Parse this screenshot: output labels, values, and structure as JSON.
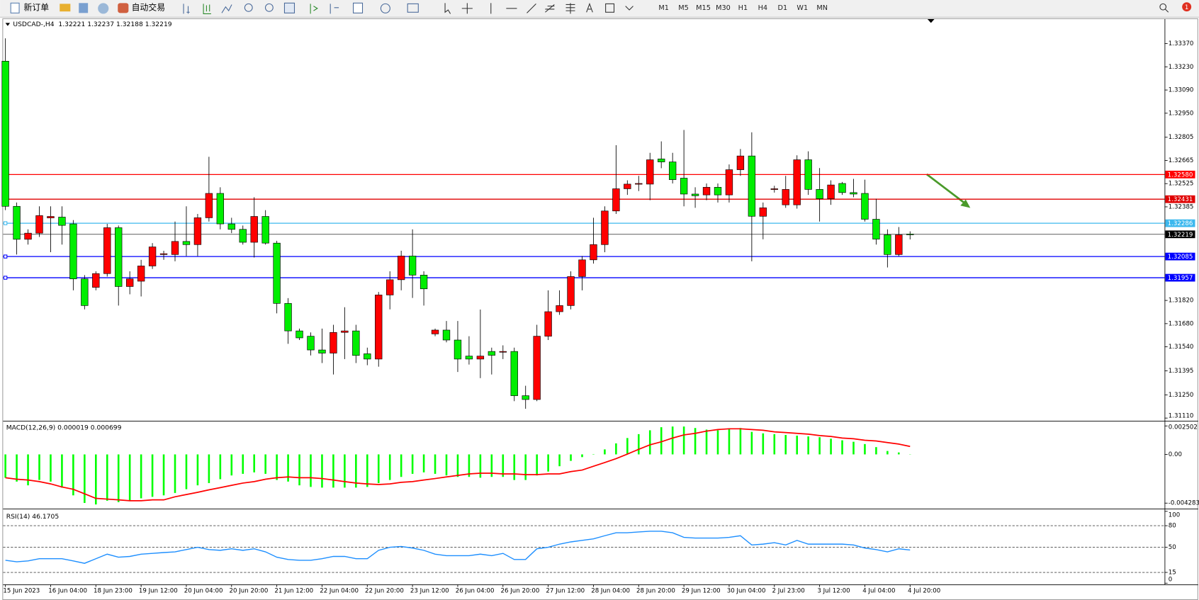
{
  "toolbar": {
    "new_order": "新订单",
    "auto_trading": "自动交易",
    "timeframes": [
      "M1",
      "M5",
      "M15",
      "M30",
      "H1",
      "H4",
      "D1",
      "W1",
      "MN"
    ],
    "notifications": "1"
  },
  "chart_data": [
    {
      "type": "candlestick",
      "title": "USDCAD-,H4  1.32221 1.32237 1.32188 1.32219",
      "up_color": "#ff0000",
      "down_color": "#00ee00",
      "categories": [
        "15 Jun 2023",
        null,
        null,
        null,
        "16 Jun 04:00",
        null,
        null,
        null,
        "18 Jun 23:00",
        null,
        null,
        null,
        "19 Jun 12:00",
        null,
        null,
        null,
        "20 Jun 04:00",
        null,
        null,
        null,
        "20 Jun 20:00",
        null,
        null,
        null,
        "21 Jun 12:00",
        null,
        null,
        null,
        "22 Jun 04:00",
        null,
        null,
        null,
        "22 Jun 20:00",
        null,
        null,
        null,
        "23 Jun 12:00",
        null,
        null,
        null,
        "26 Jun 04:00",
        null,
        null,
        null,
        "26 Jun 20:00",
        null,
        null,
        null,
        "27 Jun 12:00",
        null,
        null,
        null,
        "28 Jun 04:00",
        null,
        null,
        null,
        "28 Jun 20:00",
        null,
        null,
        null,
        "29 Jun 12:00",
        null,
        null,
        null,
        "30 Jun 04:00",
        null,
        null,
        null,
        "2 Jul 23:00",
        null,
        null,
        null,
        "3 Jul 12:00",
        null,
        null,
        null,
        "4 Jul 04:00",
        null,
        null,
        null,
        "4 Jul 20:00"
      ],
      "open": [
        1.33264,
        1.32388,
        1.32189,
        1.32226,
        1.32318,
        1.32323,
        1.32282,
        1.3195,
        1.31899,
        1.31982,
        1.32259,
        1.31904,
        1.31936,
        1.32028,
        1.32097,
        1.32097,
        1.32176,
        1.32157,
        1.32319,
        1.32466,
        1.32282,
        1.32249,
        1.32171,
        1.32327,
        1.32166,
        1.31802,
        1.31636,
        1.31604,
        1.31521,
        1.31502,
        1.31627,
        1.31636,
        1.31498,
        1.31466,
        1.31853,
        1.31945,
        1.32088,
        1.31973,
        1.31618,
        1.31641,
        1.31581,
        1.31484,
        1.31466,
        1.31512,
        1.31512,
        1.31512,
        1.31245,
        1.31222,
        1.31604,
        1.31752,
        1.31789,
        1.31964,
        1.32065,
        1.32157,
        1.3236,
        1.32494,
        1.32526,
        1.32522,
        1.32674,
        1.32656,
        1.32558,
        1.32462,
        1.32457,
        1.32503,
        1.32457,
        1.32609,
        1.32692,
        1.32328,
        1.32494,
        1.32397,
        1.32397,
        1.32669,
        1.3249,
        1.32434,
        1.32526,
        1.32471,
        1.32466,
        1.3231,
        1.32216,
        1.32097,
        1.32221
      ],
      "high": [
        1.33402,
        1.32411,
        1.32249,
        1.32388,
        1.32388,
        1.32388,
        1.32305,
        1.31973,
        1.31996,
        1.32282,
        1.32272,
        1.31996,
        1.32065,
        1.32166,
        1.3212,
        1.32296,
        1.32388,
        1.32342,
        1.32687,
        1.32503,
        1.32319,
        1.32272,
        1.32443,
        1.32365,
        1.3218,
        1.31834,
        1.3165,
        1.31627,
        1.3165,
        1.31673,
        1.31779,
        1.31673,
        1.31535,
        1.31871,
        1.31996,
        1.3212,
        1.32249,
        1.31996,
        1.3165,
        1.31696,
        1.31696,
        1.31604,
        1.31765,
        1.31535,
        1.31549,
        1.31535,
        1.31305,
        1.31673,
        1.31881,
        1.31881,
        1.31996,
        1.32088,
        1.32319,
        1.32388,
        1.32757,
        1.32545,
        1.32572,
        1.32711,
        1.3278,
        1.32711,
        1.32849,
        1.32503,
        1.32526,
        1.32526,
        1.32641,
        1.32734,
        1.32835,
        1.32411,
        1.32512,
        1.32572,
        1.32696,
        1.3272,
        1.32619,
        1.32545,
        1.32535,
        1.32554,
        1.32549,
        1.32434,
        1.32249,
        1.32263,
        1.32237
      ],
      "low": [
        1.32365,
        1.32097,
        1.32157,
        1.32203,
        1.32111,
        1.32157,
        1.31881,
        1.31766,
        1.31881,
        1.31964,
        1.31789,
        1.31857,
        1.31844,
        1.3201,
        1.32065,
        1.32056,
        1.32088,
        1.32088,
        1.32296,
        1.32249,
        1.32226,
        1.32157,
        1.32079,
        1.32157,
        1.31742,
        1.31558,
        1.31581,
        1.31488,
        1.31442,
        1.31373,
        1.31466,
        1.31442,
        1.31429,
        1.3142,
        1.31766,
        1.31881,
        1.31835,
        1.31789,
        1.31604,
        1.31567,
        1.31388,
        1.31433,
        1.31351,
        1.31373,
        1.31466,
        1.31212,
        1.31166,
        1.31212,
        1.31581,
        1.31733,
        1.31766,
        1.31881,
        1.32042,
        1.32111,
        1.32342,
        1.32457,
        1.3248,
        1.32425,
        1.32618,
        1.32526,
        1.32388,
        1.32379,
        1.32425,
        1.32411,
        1.32411,
        1.32572,
        1.32056,
        1.32189,
        1.32471,
        1.32379,
        1.32374,
        1.32457,
        1.32296,
        1.32397,
        1.32457,
        1.32443,
        1.32296,
        1.32157,
        1.32019,
        1.32088,
        1.32188
      ],
      "close": [
        1.32388,
        1.32189,
        1.32226,
        1.32332,
        1.32327,
        1.32273,
        1.3195,
        1.31789,
        1.31982,
        1.32259,
        1.31904,
        1.3195,
        1.32028,
        1.32143,
        1.32102,
        1.32176,
        1.32157,
        1.32319,
        1.32466,
        1.32282,
        1.32249,
        1.32171,
        1.32327,
        1.32166,
        1.31802,
        1.31636,
        1.31594,
        1.31521,
        1.31502,
        1.31627,
        1.31636,
        1.31488,
        1.31466,
        1.31853,
        1.31945,
        1.32088,
        1.31973,
        1.3189,
        1.31641,
        1.31581,
        1.31466,
        1.31466,
        1.31484,
        1.31489,
        1.31512,
        1.31245,
        1.31222,
        1.31604,
        1.31752,
        1.31789,
        1.31964,
        1.32065,
        1.32157,
        1.3236,
        1.32494,
        1.32522,
        1.32526,
        1.32669,
        1.32656,
        1.32549,
        1.32462,
        1.32452,
        1.32503,
        1.32457,
        1.32609,
        1.32692,
        1.32328,
        1.32379,
        1.32494,
        1.3249,
        1.32669,
        1.3249,
        1.32434,
        1.32517,
        1.32471,
        1.32462,
        1.3231,
        1.3219,
        1.32097,
        1.32216,
        1.32219
      ],
      "ylim": [
        1.31096,
        1.33518
      ],
      "yticks": [
        {
          "value": 1.3337,
          "label": "1.33370"
        },
        {
          "value": 1.3323,
          "label": "1.33230"
        },
        {
          "value": 1.3309,
          "label": "1.33090"
        },
        {
          "value": 1.3295,
          "label": "1.32950"
        },
        {
          "value": 1.32805,
          "label": "1.32805"
        },
        {
          "value": 1.32665,
          "label": "1.32665"
        },
        {
          "value": 1.32525,
          "label": "1.32525"
        },
        {
          "value": 1.32385,
          "label": "1.32385"
        },
        {
          "value": 1.3182,
          "label": "1.31820"
        },
        {
          "value": 1.3168,
          "label": "1.31680"
        },
        {
          "value": 1.3154,
          "label": "1.31540"
        },
        {
          "value": 1.31395,
          "label": "1.31395"
        },
        {
          "value": 1.3125,
          "label": "1.31250"
        },
        {
          "value": 1.3111,
          "label": "1.31110"
        }
      ],
      "levels": [
        {
          "value": 1.3258,
          "label": "1.32580",
          "color": "#ff0000"
        },
        {
          "value": 1.32431,
          "label": "1.32431",
          "color": "#e00000"
        },
        {
          "value": 1.32286,
          "label": "1.32286",
          "color": "#3cb8ee"
        },
        {
          "value": 1.32085,
          "label": "1.32085",
          "color": "#0000ff"
        },
        {
          "value": 1.31957,
          "label": "1.31957",
          "color": "#0000ff"
        }
      ],
      "current_price": {
        "value": 1.32219,
        "label": "1.32219",
        "color": "#000000"
      }
    },
    {
      "type": "macd",
      "title": "MACD(12,26,9) 0.000019 0.000699",
      "series": [
        {
          "color": "#00ff00",
          "values": [
            -0.00205,
            -0.00239,
            -0.00272,
            -0.00225,
            -0.00239,
            -0.00292,
            -0.0036,
            -0.00427,
            -0.0044,
            -0.00407,
            -0.0042,
            -0.00407,
            -0.00386,
            -0.00373,
            -0.0036,
            -0.00339,
            -0.00306,
            -0.00272,
            -0.00252,
            -0.00218,
            -0.00185,
            -0.00171,
            -0.00158,
            -0.00171,
            -0.00225,
            -0.00239,
            -0.00272,
            -0.00286,
            -0.00292,
            -0.00292,
            -0.00292,
            -0.00292,
            -0.00286,
            -0.00252,
            -0.00225,
            -0.00198,
            -0.00171,
            -0.00158,
            -0.00171,
            -0.00185,
            -0.00198,
            -0.00198,
            -0.00205,
            -0.00198,
            -0.00198,
            -0.00225,
            -0.00225,
            -0.00185,
            -0.00151,
            -0.00104,
            -0.00057,
            -0.00024,
            3e-05,
            0.00044,
            0.00097,
            0.00144,
            0.00178,
            0.00212,
            0.00239,
            0.00245,
            0.00245,
            0.00232,
            0.00218,
            0.00212,
            0.00225,
            0.00232,
            0.00198,
            0.00185,
            0.00178,
            0.00171,
            0.00165,
            0.00158,
            0.00151,
            0.00138,
            0.00124,
            0.00111,
            0.00091,
            0.00064,
            0.0003,
            0.00017,
            1.9e-05
          ]
        },
        {
          "color": "#ff0000",
          "values": [
            -0.00205,
            -0.00218,
            -0.00225,
            -0.00239,
            -0.00259,
            -0.00286,
            -0.00306,
            -0.00346,
            -0.00386,
            -0.00393,
            -0.004,
            -0.00407,
            -0.00407,
            -0.004,
            -0.004,
            -0.00373,
            -0.00353,
            -0.00333,
            -0.00312,
            -0.00292,
            -0.00272,
            -0.00252,
            -0.00239,
            -0.00218,
            -0.00205,
            -0.00198,
            -0.00205,
            -0.00205,
            -0.00212,
            -0.00225,
            -0.00239,
            -0.00252,
            -0.00259,
            -0.00265,
            -0.00259,
            -0.00245,
            -0.00239,
            -0.00225,
            -0.00212,
            -0.00198,
            -0.00185,
            -0.00171,
            -0.00165,
            -0.00165,
            -0.00171,
            -0.00171,
            -0.00178,
            -0.00178,
            -0.00171,
            -0.00171,
            -0.00151,
            -0.00138,
            -0.00104,
            -0.00071,
            -0.00037,
            3e-05,
            0.00044,
            0.00084,
            0.00111,
            0.00144,
            0.00171,
            0.00185,
            0.00205,
            0.00218,
            0.00225,
            0.00225,
            0.00218,
            0.00212,
            0.00198,
            0.00192,
            0.00185,
            0.00178,
            0.00165,
            0.00158,
            0.00144,
            0.00138,
            0.00124,
            0.00118,
            0.00104,
            0.00091,
            0.000699
          ]
        }
      ],
      "ylim": [
        -0.004736,
        0.002855
      ],
      "yticks": [
        0.002502,
        {
          "value": 0,
          "label": "0.00"
        },
        -0.004283
      ]
    },
    {
      "type": "line",
      "title": "RSI(14) 46.1705",
      "series": [
        {
          "color": "#1e8fff",
          "values": [
            31.9,
            29.8,
            30.9,
            34,
            34,
            34,
            30.9,
            27.7,
            34,
            40.4,
            36.2,
            37.2,
            40.4,
            41.5,
            42.6,
            43.6,
            46.8,
            50,
            46.8,
            45.7,
            47.9,
            45.7,
            47.9,
            43.6,
            36.2,
            33,
            31.9,
            31.9,
            34,
            37.2,
            37.2,
            34,
            34,
            45.7,
            50,
            51.1,
            48.9,
            45.7,
            40.4,
            38.3,
            38.3,
            38.3,
            40.4,
            38.3,
            41.5,
            33,
            33,
            47.9,
            50,
            54.3,
            57.4,
            59.6,
            61.7,
            66,
            70.2,
            70.2,
            71.3,
            72.3,
            72.3,
            70.2,
            63.8,
            62.8,
            62.8,
            62.8,
            63.8,
            66,
            53.2,
            54.3,
            56.4,
            53.2,
            59.6,
            54.3,
            54.3,
            54.3,
            54.3,
            53.2,
            48.9,
            46.8,
            43.6,
            47.9,
            46.1705
          ]
        }
      ],
      "ylim": [
        -1.06,
        102.1
      ],
      "yticks": [
        100,
        80,
        50,
        15,
        0
      ],
      "dashed_levels": [
        80,
        50,
        15
      ]
    }
  ]
}
